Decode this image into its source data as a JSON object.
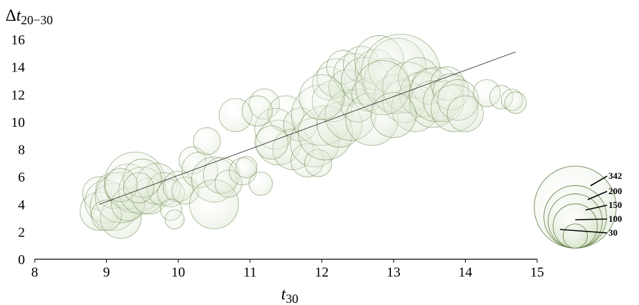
{
  "chart_data": {
    "type": "bubble",
    "xlabel": {
      "main": "t",
      "sub": "30"
    },
    "ylabel": {
      "prefix": "Δ",
      "main": "t",
      "sub": "20−30"
    },
    "xlim": [
      8,
      15
    ],
    "ylim": [
      0,
      16
    ],
    "xticks": [
      "8",
      "9",
      "10",
      "11",
      "12",
      "13",
      "14",
      "15"
    ],
    "yticks": [
      "0",
      "2",
      "4",
      "6",
      "8",
      "10",
      "12",
      "14",
      "16"
    ],
    "trendline": {
      "x": [
        8.9,
        14.7
      ],
      "y": [
        4.0,
        15.1
      ]
    },
    "bubble_fill": "#d5e2c8",
    "bubble_stroke": "#6e8a52",
    "size_legend": [
      "342",
      "200",
      "150",
      "100",
      "30"
    ],
    "points": [
      {
        "x": 8.9,
        "y": 4.8,
        "s": 60
      },
      {
        "x": 8.9,
        "y": 3.5,
        "s": 80
      },
      {
        "x": 9.0,
        "y": 4.2,
        "s": 100
      },
      {
        "x": 9.1,
        "y": 3.8,
        "s": 120
      },
      {
        "x": 9.2,
        "y": 3.0,
        "s": 90
      },
      {
        "x": 9.1,
        "y": 5.0,
        "s": 70
      },
      {
        "x": 9.2,
        "y": 4.5,
        "s": 140
      },
      {
        "x": 9.3,
        "y": 5.3,
        "s": 110
      },
      {
        "x": 9.4,
        "y": 5.6,
        "s": 200
      },
      {
        "x": 9.0,
        "y": 3.2,
        "s": 50
      },
      {
        "x": 9.3,
        "y": 4.0,
        "s": 60
      },
      {
        "x": 9.5,
        "y": 5.0,
        "s": 120
      },
      {
        "x": 9.6,
        "y": 4.6,
        "s": 70
      },
      {
        "x": 9.7,
        "y": 5.5,
        "s": 90
      },
      {
        "x": 9.8,
        "y": 5.1,
        "s": 60
      },
      {
        "x": 9.5,
        "y": 5.9,
        "s": 80
      },
      {
        "x": 9.9,
        "y": 4.8,
        "s": 40
      },
      {
        "x": 10.0,
        "y": 5.3,
        "s": 50
      },
      {
        "x": 10.1,
        "y": 5.0,
        "s": 40
      },
      {
        "x": 9.9,
        "y": 3.6,
        "s": 25
      },
      {
        "x": 9.95,
        "y": 2.9,
        "s": 20
      },
      {
        "x": 9.2,
        "y": 5.4,
        "s": 60
      },
      {
        "x": 9.45,
        "y": 5.2,
        "s": 50
      },
      {
        "x": 10.2,
        "y": 7.2,
        "s": 40
      },
      {
        "x": 10.3,
        "y": 6.5,
        "s": 70
      },
      {
        "x": 10.4,
        "y": 8.6,
        "s": 40
      },
      {
        "x": 10.5,
        "y": 5.8,
        "s": 110
      },
      {
        "x": 10.5,
        "y": 4.0,
        "s": 130
      },
      {
        "x": 10.6,
        "y": 6.1,
        "s": 70
      },
      {
        "x": 10.7,
        "y": 5.5,
        "s": 40
      },
      {
        "x": 10.8,
        "y": 10.5,
        "s": 60
      },
      {
        "x": 10.9,
        "y": 6.4,
        "s": 40
      },
      {
        "x": 10.95,
        "y": 6.7,
        "s": 25
      },
      {
        "x": 11.15,
        "y": 5.5,
        "s": 30
      },
      {
        "x": 11.2,
        "y": 11.3,
        "s": 50
      },
      {
        "x": 11.35,
        "y": 9.5,
        "s": 90
      },
      {
        "x": 11.4,
        "y": 8.5,
        "s": 110
      },
      {
        "x": 11.5,
        "y": 10.6,
        "s": 70
      },
      {
        "x": 11.6,
        "y": 8.0,
        "s": 90
      },
      {
        "x": 11.7,
        "y": 9.8,
        "s": 60
      },
      {
        "x": 11.8,
        "y": 7.2,
        "s": 60
      },
      {
        "x": 11.9,
        "y": 8.5,
        "s": 130
      },
      {
        "x": 11.95,
        "y": 7.0,
        "s": 40
      },
      {
        "x": 12.0,
        "y": 10.5,
        "s": 200
      },
      {
        "x": 12.05,
        "y": 9.2,
        "s": 160
      },
      {
        "x": 12.1,
        "y": 12.8,
        "s": 60
      },
      {
        "x": 12.15,
        "y": 11.5,
        "s": 90
      },
      {
        "x": 12.2,
        "y": 13.2,
        "s": 80
      },
      {
        "x": 12.25,
        "y": 9.8,
        "s": 110
      },
      {
        "x": 12.3,
        "y": 14.0,
        "s": 60
      },
      {
        "x": 12.35,
        "y": 12.5,
        "s": 70
      },
      {
        "x": 12.4,
        "y": 10.5,
        "s": 140
      },
      {
        "x": 12.45,
        "y": 13.5,
        "s": 90
      },
      {
        "x": 12.5,
        "y": 11.2,
        "s": 60
      },
      {
        "x": 12.55,
        "y": 14.2,
        "s": 70
      },
      {
        "x": 12.6,
        "y": 13.0,
        "s": 120
      },
      {
        "x": 12.65,
        "y": 12.0,
        "s": 60
      },
      {
        "x": 12.7,
        "y": 10.2,
        "s": 150
      },
      {
        "x": 12.75,
        "y": 13.8,
        "s": 90
      },
      {
        "x": 12.8,
        "y": 14.5,
        "s": 130
      },
      {
        "x": 12.9,
        "y": 13.0,
        "s": 110
      },
      {
        "x": 13.0,
        "y": 12.0,
        "s": 80
      },
      {
        "x": 13.05,
        "y": 14.0,
        "s": 180
      },
      {
        "x": 13.1,
        "y": 13.5,
        "s": 342
      },
      {
        "x": 13.15,
        "y": 11.5,
        "s": 100
      },
      {
        "x": 13.2,
        "y": 12.5,
        "s": 140
      },
      {
        "x": 13.3,
        "y": 11.0,
        "s": 120
      },
      {
        "x": 13.35,
        "y": 13.2,
        "s": 90
      },
      {
        "x": 13.4,
        "y": 12.0,
        "s": 110
      },
      {
        "x": 13.5,
        "y": 12.6,
        "s": 70
      },
      {
        "x": 13.55,
        "y": 11.3,
        "s": 120
      },
      {
        "x": 13.6,
        "y": 12.0,
        "s": 160
      },
      {
        "x": 13.7,
        "y": 11.5,
        "s": 90
      },
      {
        "x": 13.75,
        "y": 12.8,
        "s": 60
      },
      {
        "x": 13.8,
        "y": 12.2,
        "s": 70
      },
      {
        "x": 13.85,
        "y": 11.0,
        "s": 120
      },
      {
        "x": 13.9,
        "y": 11.6,
        "s": 90
      },
      {
        "x": 14.0,
        "y": 10.6,
        "s": 70
      },
      {
        "x": 14.3,
        "y": 12.1,
        "s": 40
      },
      {
        "x": 14.5,
        "y": 11.8,
        "s": 30
      },
      {
        "x": 14.65,
        "y": 11.6,
        "s": 25
      },
      {
        "x": 14.7,
        "y": 11.4,
        "s": 25
      },
      {
        "x": 11.1,
        "y": 10.8,
        "s": 50
      },
      {
        "x": 11.3,
        "y": 8.5,
        "s": 60
      },
      {
        "x": 12.0,
        "y": 11.8,
        "s": 110
      },
      {
        "x": 12.85,
        "y": 12.5,
        "s": 160
      },
      {
        "x": 13.0,
        "y": 10.5,
        "s": 110
      }
    ]
  }
}
